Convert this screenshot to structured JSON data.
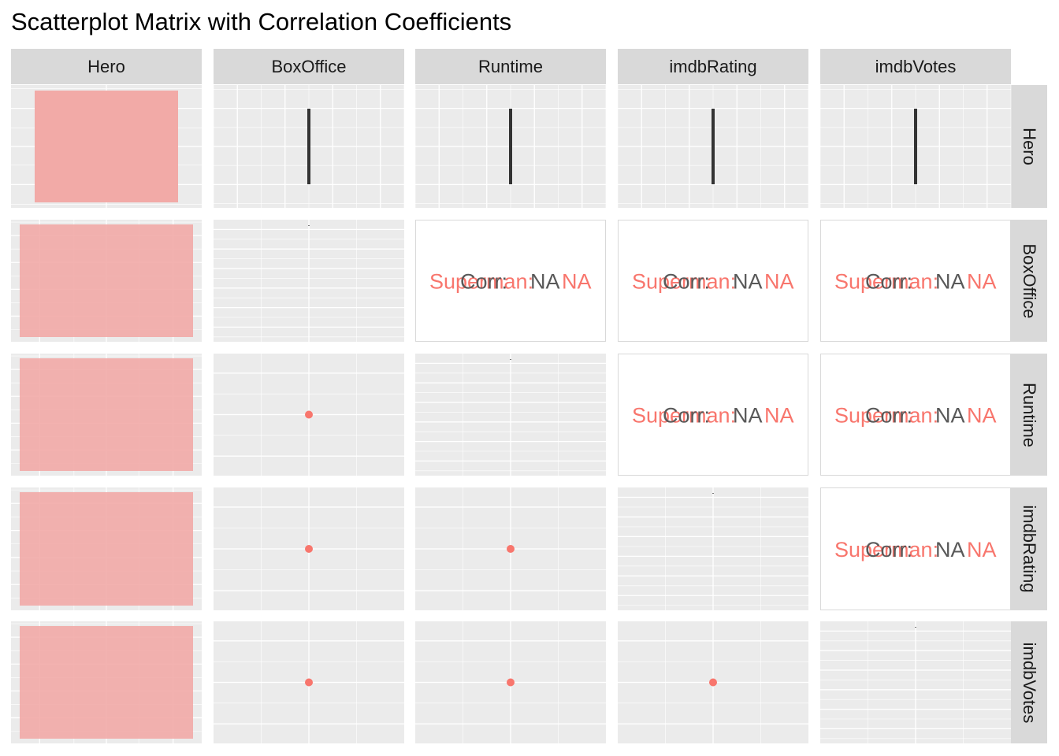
{
  "title": "Scatterplot Matrix with Correlation Coefficients",
  "variables": [
    "Hero",
    "BoxOffice",
    "Runtime",
    "imdbRating",
    "imdbVotes"
  ],
  "colors": {
    "panel_background": "#ebebeb",
    "gridline": "#ffffff",
    "strip_background": "#d9d9d9",
    "series": "#f8766d",
    "bar_fill": "#f2aaa7",
    "corr_text": "#595959",
    "segment": "#333333"
  },
  "chart_data": {
    "type": "scatterplot-matrix",
    "variables": [
      "Hero",
      "BoxOffice",
      "Runtime",
      "imdbRating",
      "imdbVotes"
    ],
    "series": [
      {
        "name": "Superman",
        "color": "#f8766d"
      }
    ],
    "diagonal": {
      "Hero": {
        "type": "bar",
        "category": "Superman",
        "count": 1
      },
      "BoxOffice": {
        "type": "density",
        "values": []
      },
      "Runtime": {
        "type": "density",
        "values": []
      },
      "imdbRating": {
        "type": "density",
        "values": []
      },
      "imdbVotes": {
        "type": "density",
        "values": []
      }
    },
    "lower": {
      "Hero_histograms": [
        {
          "row": "BoxOffice",
          "type": "histogram",
          "count": 1
        },
        {
          "row": "Runtime",
          "type": "histogram",
          "count": 1
        },
        {
          "row": "imdbRating",
          "type": "histogram",
          "count": 1
        },
        {
          "row": "imdbVotes",
          "type": "histogram",
          "count": 1
        }
      ],
      "scatter_points": [
        {
          "row": "Runtime",
          "col": "BoxOffice",
          "points": 1
        },
        {
          "row": "imdbRating",
          "col": "BoxOffice",
          "points": 1
        },
        {
          "row": "imdbRating",
          "col": "Runtime",
          "points": 1
        },
        {
          "row": "imdbVotes",
          "col": "BoxOffice",
          "points": 1
        },
        {
          "row": "imdbVotes",
          "col": "Runtime",
          "points": 1
        },
        {
          "row": "imdbVotes",
          "col": "imdbRating",
          "points": 1
        }
      ]
    },
    "upper": {
      "boxplots": [
        {
          "row": "Hero",
          "col": "BoxOffice",
          "type": "box"
        },
        {
          "row": "Hero",
          "col": "Runtime",
          "type": "box"
        },
        {
          "row": "Hero",
          "col": "imdbRating",
          "type": "box"
        },
        {
          "row": "Hero",
          "col": "imdbVotes",
          "type": "box"
        }
      ],
      "correlations": [
        {
          "row": "BoxOffice",
          "col": "Runtime",
          "corr_label": "Corr:",
          "overall": "NA",
          "group": "Superman",
          "group_value": "NA"
        },
        {
          "row": "BoxOffice",
          "col": "imdbRating",
          "corr_label": "Corr:",
          "overall": "NA",
          "group": "Superman",
          "group_value": "NA"
        },
        {
          "row": "BoxOffice",
          "col": "imdbVotes",
          "corr_label": "Corr:",
          "overall": "NA",
          "group": "Superman",
          "group_value": "NA"
        },
        {
          "row": "Runtime",
          "col": "imdbRating",
          "corr_label": "Corr:",
          "overall": "NA",
          "group": "Superman",
          "group_value": "NA"
        },
        {
          "row": "Runtime",
          "col": "imdbVotes",
          "corr_label": "Corr:",
          "overall": "NA",
          "group": "Superman",
          "group_value": "NA"
        },
        {
          "row": "imdbRating",
          "col": "imdbVotes",
          "corr_label": "Corr:",
          "overall": "NA",
          "group": "Superman",
          "group_value": "NA"
        }
      ]
    }
  }
}
